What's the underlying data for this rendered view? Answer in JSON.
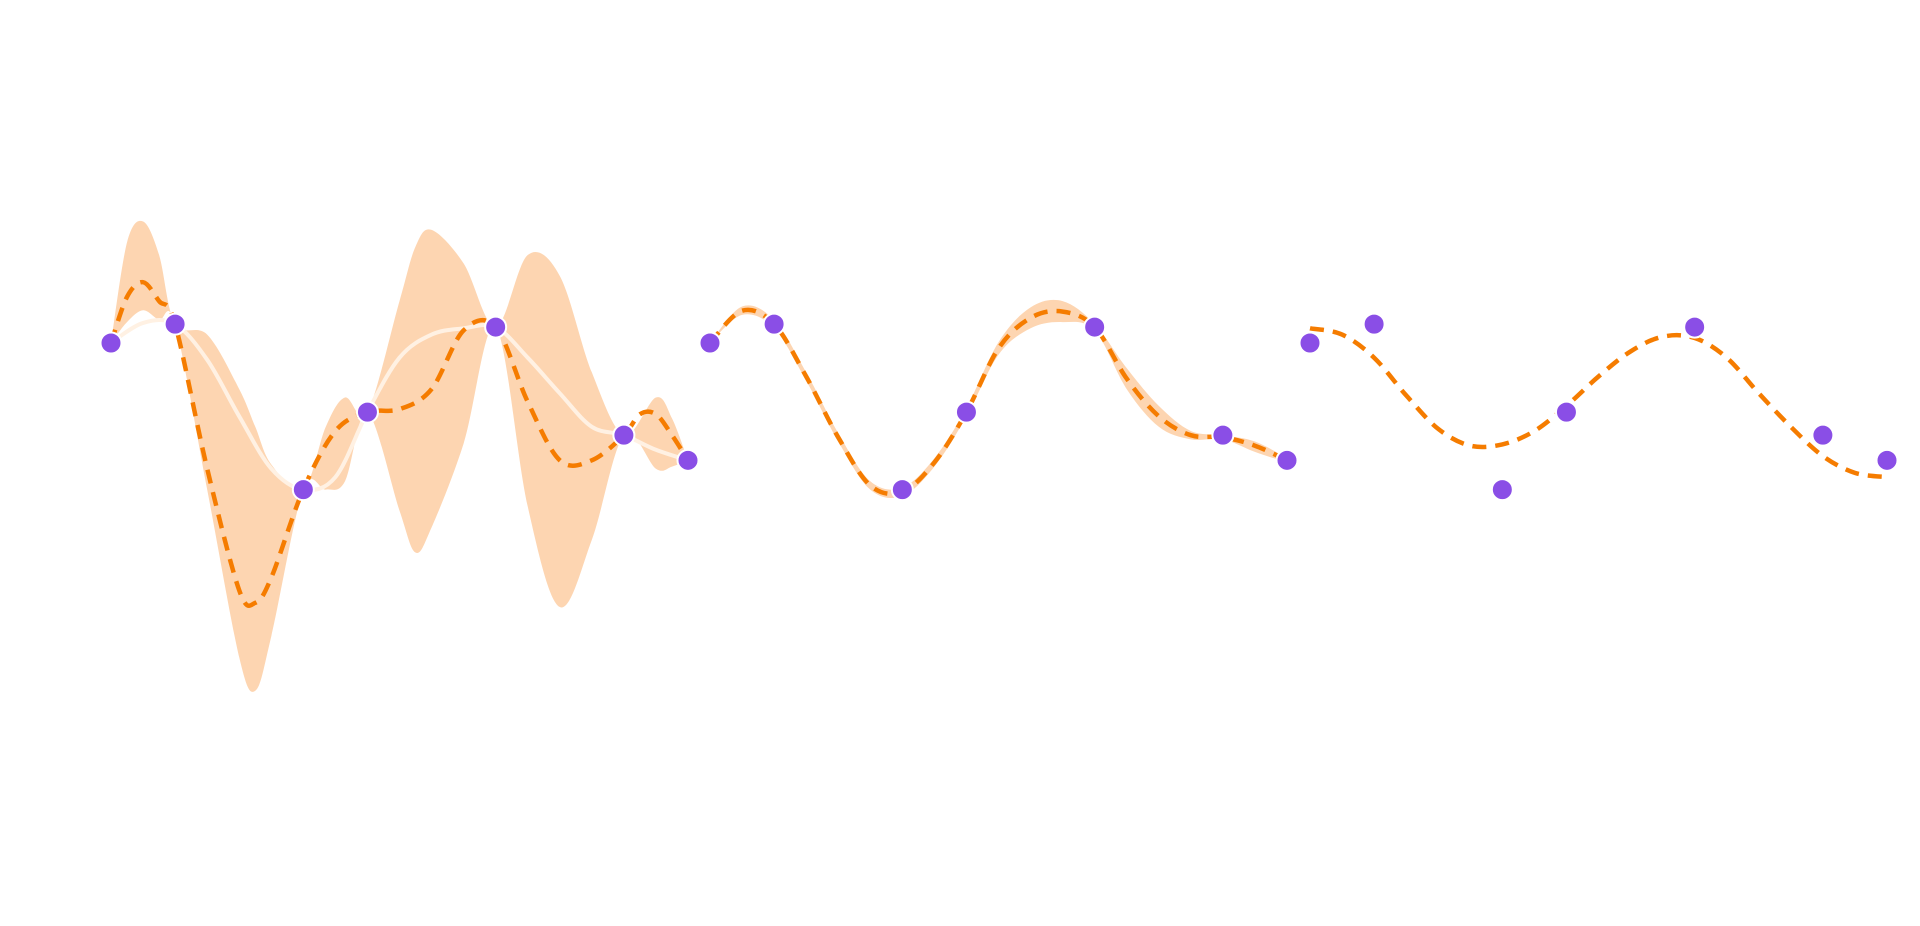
{
  "colors": {
    "band": "#fdd5b1",
    "mean_line": "#fff1e3",
    "dashed_fit": "#f57c00",
    "points": "#8a4ee6",
    "background": "#ffffff"
  },
  "chart_data": [
    {
      "type": "line",
      "panel": "left",
      "points": {
        "x": [
          0,
          1,
          3,
          4,
          6,
          8,
          9
        ],
        "y": [
          0.0,
          0.45,
          -3.5,
          -1.65,
          0.38,
          -2.2,
          -2.8
        ]
      },
      "mean": {
        "x": [
          0,
          0.5,
          1,
          1.5,
          2,
          2.5,
          3,
          3.5,
          4,
          4.5,
          5,
          5.5,
          6,
          6.5,
          7,
          7.5,
          8,
          8.5,
          9
        ],
        "y": [
          0.0,
          0.48,
          0.45,
          -0.4,
          -1.75,
          -3.0,
          -3.5,
          -3.2,
          -1.65,
          -0.35,
          0.2,
          0.35,
          0.38,
          -0.35,
          -1.2,
          -2.0,
          -2.2,
          -2.55,
          -2.8
        ]
      },
      "band": {
        "x": [
          0,
          0.25,
          0.5,
          0.75,
          1,
          1.5,
          2,
          2.25,
          2.5,
          3,
          3.35,
          3.65,
          4,
          4.5,
          4.75,
          5,
          5.5,
          6,
          6.5,
          7,
          7.5,
          8,
          8.5,
          8.75,
          9
        ],
        "upper": [
          0.0,
          2.4,
          2.9,
          2.1,
          0.45,
          0.2,
          -1.1,
          -2.0,
          -2.9,
          -3.5,
          -2.0,
          -1.3,
          -1.65,
          1.0,
          2.3,
          2.7,
          1.9,
          0.38,
          2.1,
          1.6,
          -0.7,
          -2.2,
          -1.3,
          -1.8,
          -2.8
        ],
        "lower": [
          0.0,
          0.5,
          0.78,
          0.55,
          0.45,
          -3.5,
          -7.5,
          -8.3,
          -7.0,
          -3.5,
          -3.5,
          -3.3,
          -1.65,
          -4.0,
          -5.0,
          -4.4,
          -2.4,
          0.38,
          -3.9,
          -6.3,
          -4.7,
          -2.2,
          -3.0,
          -2.95,
          -2.8
        ]
      },
      "fit": {
        "x": [
          0,
          0.25,
          0.5,
          0.75,
          1,
          1.5,
          2,
          2.25,
          2.5,
          3,
          3.5,
          4,
          4.5,
          5,
          5.5,
          6,
          6.5,
          7,
          7.5,
          8,
          8.25,
          8.5,
          8.75,
          9
        ],
        "y": [
          0.0,
          1.1,
          1.45,
          1.0,
          0.45,
          -3.0,
          -5.9,
          -6.2,
          -5.6,
          -3.5,
          -2.1,
          -1.65,
          -1.58,
          -1.1,
          0.3,
          0.38,
          -1.4,
          -2.8,
          -2.8,
          -2.2,
          -1.7,
          -1.7,
          -2.2,
          -2.8
        ]
      }
    },
    {
      "type": "line",
      "panel": "middle",
      "points": {
        "x": [
          0,
          1,
          3,
          4,
          6,
          8,
          9
        ],
        "y": [
          0.0,
          0.45,
          -3.5,
          -1.65,
          0.38,
          -2.2,
          -2.8
        ]
      },
      "band": {
        "x": [
          0,
          0.5,
          1,
          1.5,
          2,
          2.5,
          3,
          3.5,
          4,
          4.5,
          5,
          5.5,
          6,
          6.5,
          7,
          7.5,
          8,
          8.5,
          9
        ],
        "upper": [
          0.0,
          0.87,
          0.55,
          -0.7,
          -2.15,
          -3.3,
          -3.45,
          -2.75,
          -1.55,
          0.02,
          0.85,
          1.0,
          0.45,
          -0.6,
          -1.5,
          -2.1,
          -2.2,
          -2.35,
          -2.75
        ],
        "lower": [
          0.0,
          0.67,
          0.35,
          -0.9,
          -2.35,
          -3.5,
          -3.65,
          -2.95,
          -1.75,
          -0.28,
          0.35,
          0.5,
          0.3,
          -1.1,
          -2.0,
          -2.3,
          -2.3,
          -2.6,
          -2.85
        ]
      },
      "fit": {
        "x": [
          0,
          0.5,
          1,
          1.5,
          2,
          2.5,
          3,
          3.5,
          4,
          4.5,
          5,
          5.5,
          6,
          6.5,
          7,
          7.5,
          8,
          8.5,
          9
        ],
        "y": [
          0.0,
          0.77,
          0.45,
          -0.8,
          -2.25,
          -3.4,
          -3.55,
          -2.85,
          -1.65,
          -0.13,
          0.6,
          0.75,
          0.38,
          -0.85,
          -1.75,
          -2.2,
          -2.25,
          -2.45,
          -2.8
        ]
      }
    },
    {
      "type": "line",
      "panel": "right",
      "points": {
        "x": [
          0,
          1,
          3,
          4,
          6,
          8,
          9
        ],
        "y": [
          0.0,
          0.45,
          -3.5,
          -1.65,
          0.38,
          -2.2,
          -2.8
        ]
      },
      "fit": {
        "x": [
          0,
          0.5,
          1,
          1.5,
          2,
          2.5,
          3,
          3.5,
          4,
          4.5,
          5,
          5.5,
          6,
          6.5,
          7,
          7.5,
          8,
          8.5,
          9
        ],
        "y": [
          0.35,
          0.2,
          -0.35,
          -1.25,
          -2.05,
          -2.45,
          -2.42,
          -2.1,
          -1.5,
          -0.8,
          -0.2,
          0.15,
          0.12,
          -0.35,
          -1.2,
          -2.0,
          -2.7,
          -3.1,
          -3.2
        ]
      }
    }
  ]
}
